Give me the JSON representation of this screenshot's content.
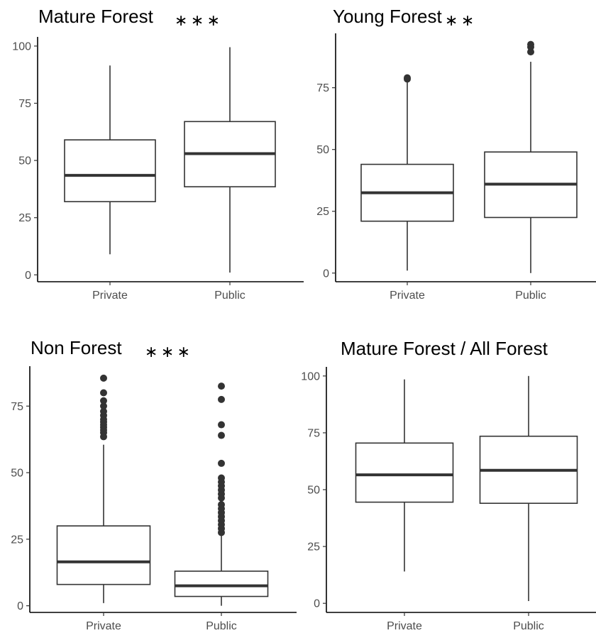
{
  "chart_data": [
    {
      "type": "boxplot",
      "title": "Mature Forest",
      "significance": "***",
      "categories": [
        "Private",
        "Public"
      ],
      "ylim": [
        -3,
        104
      ],
      "yticks": [
        0,
        25,
        50,
        75,
        100
      ],
      "boxes": [
        {
          "category": "Private",
          "whisker_low": 9,
          "q1": 32,
          "median": 43.5,
          "q3": 59,
          "whisker_high": 91.5,
          "outliers": []
        },
        {
          "category": "Public",
          "whisker_low": 1,
          "q1": 38.5,
          "median": 53,
          "q3": 67,
          "whisker_high": 99.5,
          "outliers": []
        }
      ]
    },
    {
      "type": "boxplot",
      "title": "Young Forest",
      "significance": "**",
      "categories": [
        "Private",
        "Public"
      ],
      "ylim": [
        -3.5,
        97
      ],
      "yticks": [
        0,
        25,
        50,
        75
      ],
      "boxes": [
        {
          "category": "Private",
          "whisker_low": 1,
          "q1": 21,
          "median": 32.5,
          "q3": 44,
          "whisker_high": 78,
          "outliers": [
            78.5,
            79
          ]
        },
        {
          "category": "Public",
          "whisker_low": 0,
          "q1": 22.5,
          "median": 36,
          "q3": 49,
          "whisker_high": 85.5,
          "outliers": [
            89.5,
            91.5,
            92.5
          ]
        }
      ]
    },
    {
      "type": "boxplot",
      "title": "Non Forest",
      "significance": "***",
      "categories": [
        "Private",
        "Public"
      ],
      "ylim": [
        -2.5,
        90
      ],
      "yticks": [
        0,
        25,
        50,
        75
      ],
      "boxes": [
        {
          "category": "Private",
          "whisker_low": 1,
          "q1": 8,
          "median": 16.5,
          "q3": 30,
          "whisker_high": 60.5,
          "outliers": [
            63.5,
            65,
            66,
            67,
            68,
            69,
            70,
            71.5,
            73,
            75,
            77,
            80,
            85.5
          ]
        },
        {
          "category": "Public",
          "whisker_low": 0,
          "q1": 3.5,
          "median": 7.5,
          "q3": 13,
          "whisker_high": 26.5,
          "outliers": [
            27.5,
            29,
            30.5,
            32,
            33.5,
            35,
            36.5,
            38,
            40.5,
            42,
            43.5,
            45,
            46.5,
            48,
            53.5,
            64,
            68,
            77.5,
            82.5
          ]
        }
      ]
    },
    {
      "type": "boxplot",
      "title": "Mature Forest / All Forest",
      "significance": "",
      "categories": [
        "Private",
        "Public"
      ],
      "ylim": [
        -4,
        104
      ],
      "yticks": [
        0,
        25,
        50,
        75,
        100
      ],
      "boxes": [
        {
          "category": "Private",
          "whisker_low": 14,
          "q1": 44.5,
          "median": 56.5,
          "q3": 70.5,
          "whisker_high": 98.5,
          "outliers": []
        },
        {
          "category": "Public",
          "whisker_low": 1,
          "q1": 44,
          "median": 58.5,
          "q3": 73.5,
          "whisker_high": 100,
          "outliers": []
        }
      ]
    }
  ]
}
